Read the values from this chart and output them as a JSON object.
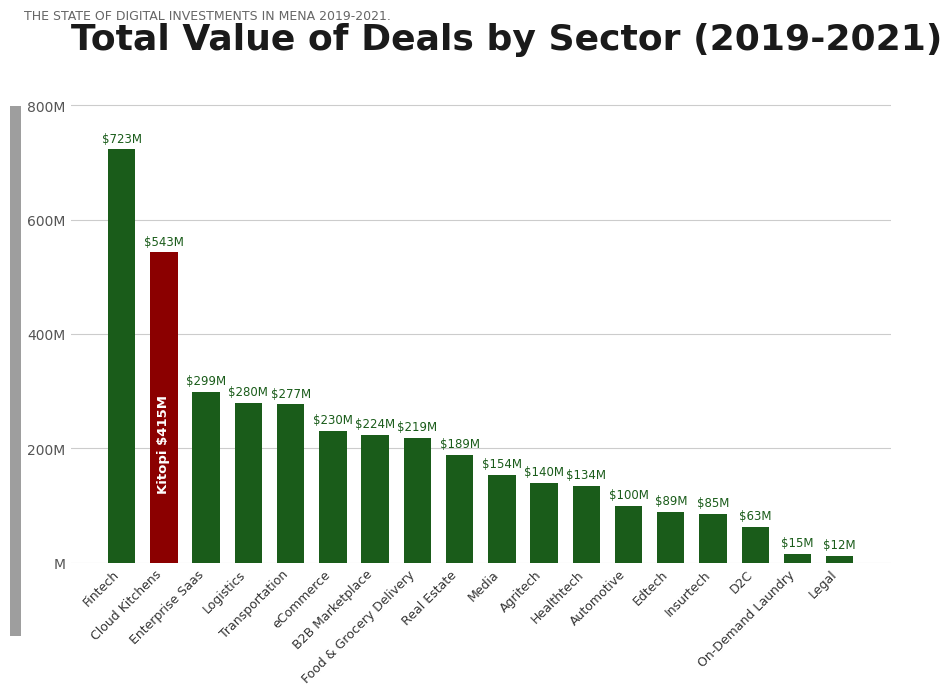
{
  "title": "Total Value of Deals by Sector (2019-2021)",
  "source_text": "THE STATE OF DIGITAL INVESTMENTS IN MENA 2019-2021.",
  "categories": [
    "Fintech",
    "Cloud Kitchens",
    "Enterprise Saas",
    "Logistics",
    "Transportation",
    "eCommerce",
    "B2B Marketplace",
    "Food & Grocery Delivery",
    "Real Estate",
    "Media",
    "Agritech",
    "Healthtech",
    "Automotive",
    "Edtech",
    "Insurtech",
    "D2C",
    "On-Demand Laundry",
    "Legal"
  ],
  "values": [
    723,
    543,
    299,
    280,
    277,
    230,
    224,
    219,
    189,
    154,
    140,
    134,
    100,
    89,
    85,
    63,
    15,
    12
  ],
  "labels": [
    "$723M",
    "$543M",
    "$299M",
    "$280M",
    "$277M",
    "$230M",
    "$224M",
    "$219M",
    "$189M",
    "$154M",
    "$140M",
    "$134M",
    "$100M",
    "$89M",
    "$85M",
    "$63M",
    "$15M",
    "$12M"
  ],
  "bar_color": "#1a5c1a",
  "kitopi_bar_index": 1,
  "kitopi_bar_color": "#8b0000",
  "kitopi_label_color": "#ffffff",
  "kitopi_annotation": "Kitopi $415M",
  "kitopi_value": 415,
  "label_color": "#1a5c1a",
  "background_color": "#ffffff",
  "ylim": [
    0,
    850
  ],
  "yticks": [
    0,
    200,
    400,
    600,
    800
  ],
  "ytick_labels": [
    "M",
    "200M",
    "400M",
    "600M",
    "800M"
  ],
  "title_fontsize": 26,
  "source_fontsize": 9,
  "bar_label_fontsize": 8.5,
  "left_accent_color": "#9e9e9e",
  "grid_color": "#cccccc"
}
